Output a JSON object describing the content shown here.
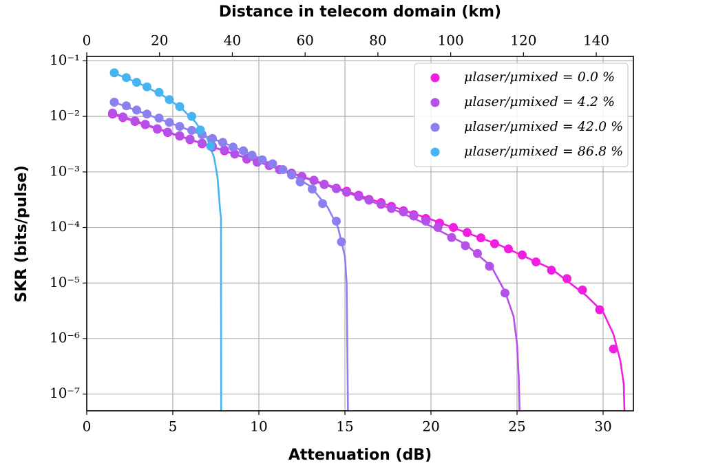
{
  "chart_data": {
    "type": "scatter",
    "xlabel": "Attenuation (dB)",
    "ylabel": "SKR (bits/pulse)",
    "x2label": "Distance in telecom domain (km)",
    "xlim": [
      0,
      31.76
    ],
    "xticks": [
      0,
      5,
      10,
      15,
      20,
      25,
      30
    ],
    "x2lim": [
      0,
      150.2
    ],
    "x2ticks": [
      0,
      20,
      40,
      60,
      80,
      100,
      120,
      140
    ],
    "ylim": [
      5e-08,
      0.12
    ],
    "log_y": true,
    "yticks": [
      {
        "value": 1e-07,
        "label": "10⁻⁷"
      },
      {
        "value": 1e-06,
        "label": "10⁻⁶"
      },
      {
        "value": 1e-05,
        "label": "10⁻⁵"
      },
      {
        "value": 0.0001,
        "label": "10⁻⁴"
      },
      {
        "value": 0.001,
        "label": "10⁻³"
      },
      {
        "value": 0.01,
        "label": "10⁻²"
      },
      {
        "value": 0.1,
        "label": "10⁻¹"
      }
    ],
    "grid": true,
    "legend": "upper right",
    "series": [
      {
        "name": "μlaser/μmixed = 0.0 %",
        "color": "#f01ee0",
        "x": [
          1.5,
          2.1,
          2.8,
          3.4,
          4.1,
          4.7,
          5.4,
          6.0,
          6.7,
          7.3,
          8.0,
          8.6,
          9.3,
          9.9,
          10.6,
          11.2,
          11.9,
          12.5,
          13.2,
          13.8,
          14.5,
          15.1,
          15.8,
          16.4,
          17.1,
          17.7,
          18.4,
          19.0,
          19.7,
          20.5,
          21.3,
          22.1,
          22.9,
          23.7,
          24.5,
          25.3,
          26.1,
          27.0,
          27.9,
          28.8,
          29.8,
          30.6
        ],
        "values": [
          0.011,
          0.0095,
          0.0081,
          0.0071,
          0.0059,
          0.0051,
          0.0044,
          0.0038,
          0.0032,
          0.0028,
          0.0024,
          0.0021,
          0.0017,
          0.0015,
          0.0013,
          0.0011,
          0.00095,
          0.00083,
          0.00071,
          0.0006,
          0.00051,
          0.00045,
          0.00038,
          0.00032,
          0.00028,
          0.00024,
          0.0002,
          0.00017,
          0.000145,
          0.00012,
          0.0001,
          8.1e-05,
          6.5e-05,
          5.1e-05,
          4.1e-05,
          3.2e-05,
          2.4e-05,
          1.7e-05,
          1.2e-05,
          7.5e-06,
          3.3e-06,
          6.5e-07
        ],
        "fit_x": [
          1.5,
          5,
          10,
          15,
          20,
          24,
          27,
          29,
          30,
          30.6,
          31,
          31.2,
          31.3
        ],
        "fit_values": [
          0.011,
          0.0048,
          0.0015,
          0.00046,
          0.00014,
          4.8e-05,
          1.8e-05,
          6e-06,
          3e-06,
          1.2e-06,
          4e-07,
          1.5e-07,
          1e-08
        ]
      },
      {
        "name": "μlaser/μmixed = 4.2 %",
        "color": "#b550e8",
        "x": [
          1.5,
          2.1,
          2.8,
          3.4,
          4.1,
          4.7,
          5.4,
          6.0,
          6.7,
          7.3,
          8.0,
          8.6,
          9.3,
          9.9,
          10.6,
          11.2,
          11.9,
          12.5,
          13.2,
          13.8,
          14.5,
          15.1,
          15.8,
          16.4,
          17.1,
          17.7,
          18.4,
          19.0,
          19.7,
          20.4,
          21.2,
          22.0,
          22.7,
          23.4,
          24.3
        ],
        "values": [
          0.0115,
          0.0098,
          0.0083,
          0.0072,
          0.006,
          0.0052,
          0.0045,
          0.0039,
          0.0033,
          0.0029,
          0.0025,
          0.0021,
          0.00175,
          0.0015,
          0.0013,
          0.0011,
          0.00095,
          0.00082,
          0.0007,
          0.00059,
          0.0005,
          0.00043,
          0.00036,
          0.00031,
          0.00026,
          0.00022,
          0.00019,
          0.00016,
          0.00013,
          0.0001,
          6.6e-05,
          4.7e-05,
          3.4e-05,
          2e-05,
          6.6e-06
        ],
        "fit_x": [
          1.5,
          5,
          10,
          15,
          18,
          20,
          22,
          23.5,
          24.3,
          24.8,
          25.0,
          25.1,
          25.2
        ],
        "fit_values": [
          0.0115,
          0.0049,
          0.0015,
          0.00044,
          0.0002,
          0.000105,
          5e-05,
          2e-05,
          7e-06,
          2.5e-06,
          8e-07,
          2e-07,
          1e-08
        ]
      },
      {
        "name": "μlaser/μmixed = 42.0 %",
        "color": "#8a80f0",
        "x": [
          1.6,
          2.3,
          2.9,
          3.5,
          4.2,
          4.8,
          5.4,
          6.1,
          6.7,
          7.3,
          7.9,
          8.5,
          9.1,
          9.6,
          10.2,
          10.8,
          11.4,
          11.9,
          12.4,
          13.1,
          13.7,
          14.5,
          14.8
        ],
        "values": [
          0.018,
          0.0155,
          0.013,
          0.011,
          0.0093,
          0.0078,
          0.0066,
          0.0056,
          0.0047,
          0.004,
          0.0034,
          0.0028,
          0.0024,
          0.002,
          0.00165,
          0.0014,
          0.0011,
          0.00088,
          0.00066,
          0.00049,
          0.00027,
          0.00013,
          5.5e-05
        ],
        "fit_x": [
          1.6,
          5,
          8,
          10,
          12,
          13,
          14,
          14.6,
          15,
          15.1,
          15.2
        ],
        "fit_values": [
          0.018,
          0.0073,
          0.0033,
          0.0018,
          0.00085,
          0.00055,
          0.00023,
          0.0001,
          3e-05,
          1e-05,
          1e-08
        ]
      },
      {
        "name": "μlaser/μmixed = 86.8 %",
        "color": "#46b4f0",
        "x": [
          1.6,
          2.3,
          2.9,
          3.5,
          4.2,
          4.8,
          5.4,
          6.1,
          6.6,
          7.2
        ],
        "values": [
          0.061,
          0.05,
          0.041,
          0.034,
          0.027,
          0.02,
          0.015,
          0.01,
          0.0057,
          0.0029
        ],
        "fit_x": [
          1.6,
          3,
          4.5,
          5.5,
          6.3,
          7,
          7.4,
          7.6,
          7.75,
          7.8,
          7.81
        ],
        "fit_values": [
          0.06,
          0.04,
          0.023,
          0.014,
          0.008,
          0.004,
          0.0018,
          0.0008,
          0.0002,
          0.00015,
          1e-08
        ]
      }
    ]
  }
}
